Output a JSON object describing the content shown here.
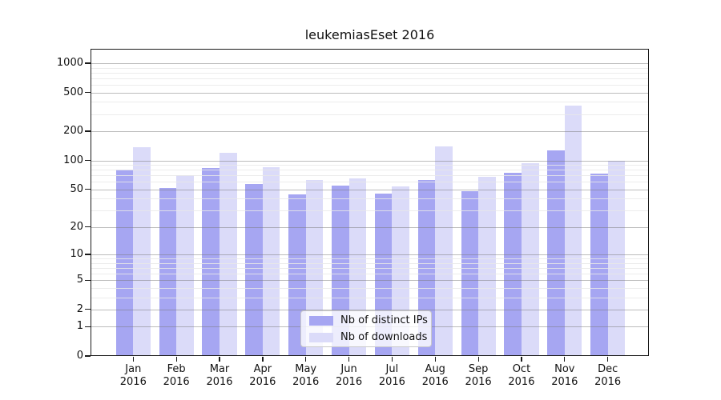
{
  "title": "leukemiasEset 2016",
  "legend": {
    "items": [
      {
        "label": "Nb of distinct IPs"
      },
      {
        "label": "Nb of downloads"
      }
    ]
  },
  "colors": {
    "bar_ips": "#a6a6f2",
    "bar_downloads": "#dbdbf9",
    "grid_major": "rgba(120,120,120,0.5)",
    "grid_minor": "rgba(231,231,231,0.85)",
    "axis": "#1a1a1a",
    "background": "#ffffff"
  },
  "chart_data": {
    "type": "bar",
    "title": "leukemiasEset 2016",
    "xlabel": "",
    "ylabel": "",
    "y_scale": "log10(value+1)",
    "ylim": [
      0,
      1400
    ],
    "grid": "on (major + log minor, drawn over bars)",
    "legend_position": "lower center inside plot",
    "categories": [
      {
        "month": "Jan",
        "year": "2016"
      },
      {
        "month": "Feb",
        "year": "2016"
      },
      {
        "month": "Mar",
        "year": "2016"
      },
      {
        "month": "Apr",
        "year": "2016"
      },
      {
        "month": "May",
        "year": "2016"
      },
      {
        "month": "Jun",
        "year": "2016"
      },
      {
        "month": "Jul",
        "year": "2016"
      },
      {
        "month": "Aug",
        "year": "2016"
      },
      {
        "month": "Sep",
        "year": "2016"
      },
      {
        "month": "Oct",
        "year": "2016"
      },
      {
        "month": "Nov",
        "year": "2016"
      },
      {
        "month": "Dec",
        "year": "2016"
      }
    ],
    "series": [
      {
        "name": "Nb of distinct IPs",
        "color": "#a6a6f2",
        "values": [
          80,
          52,
          83,
          57,
          44,
          55,
          45,
          63,
          48,
          75,
          127,
          73
        ]
      },
      {
        "name": "Nb of downloads",
        "color": "#dbdbf9",
        "values": [
          138,
          70,
          121,
          85,
          63,
          65,
          54,
          139,
          67,
          94,
          366,
          100
        ]
      }
    ],
    "y_ticks": [
      0,
      1,
      2,
      5,
      10,
      20,
      50,
      100,
      200,
      500,
      1000
    ],
    "y_minor_ticks": [
      3,
      4,
      6,
      7,
      8,
      9,
      30,
      40,
      60,
      70,
      80,
      90,
      300,
      400,
      600,
      700,
      800,
      900
    ]
  }
}
